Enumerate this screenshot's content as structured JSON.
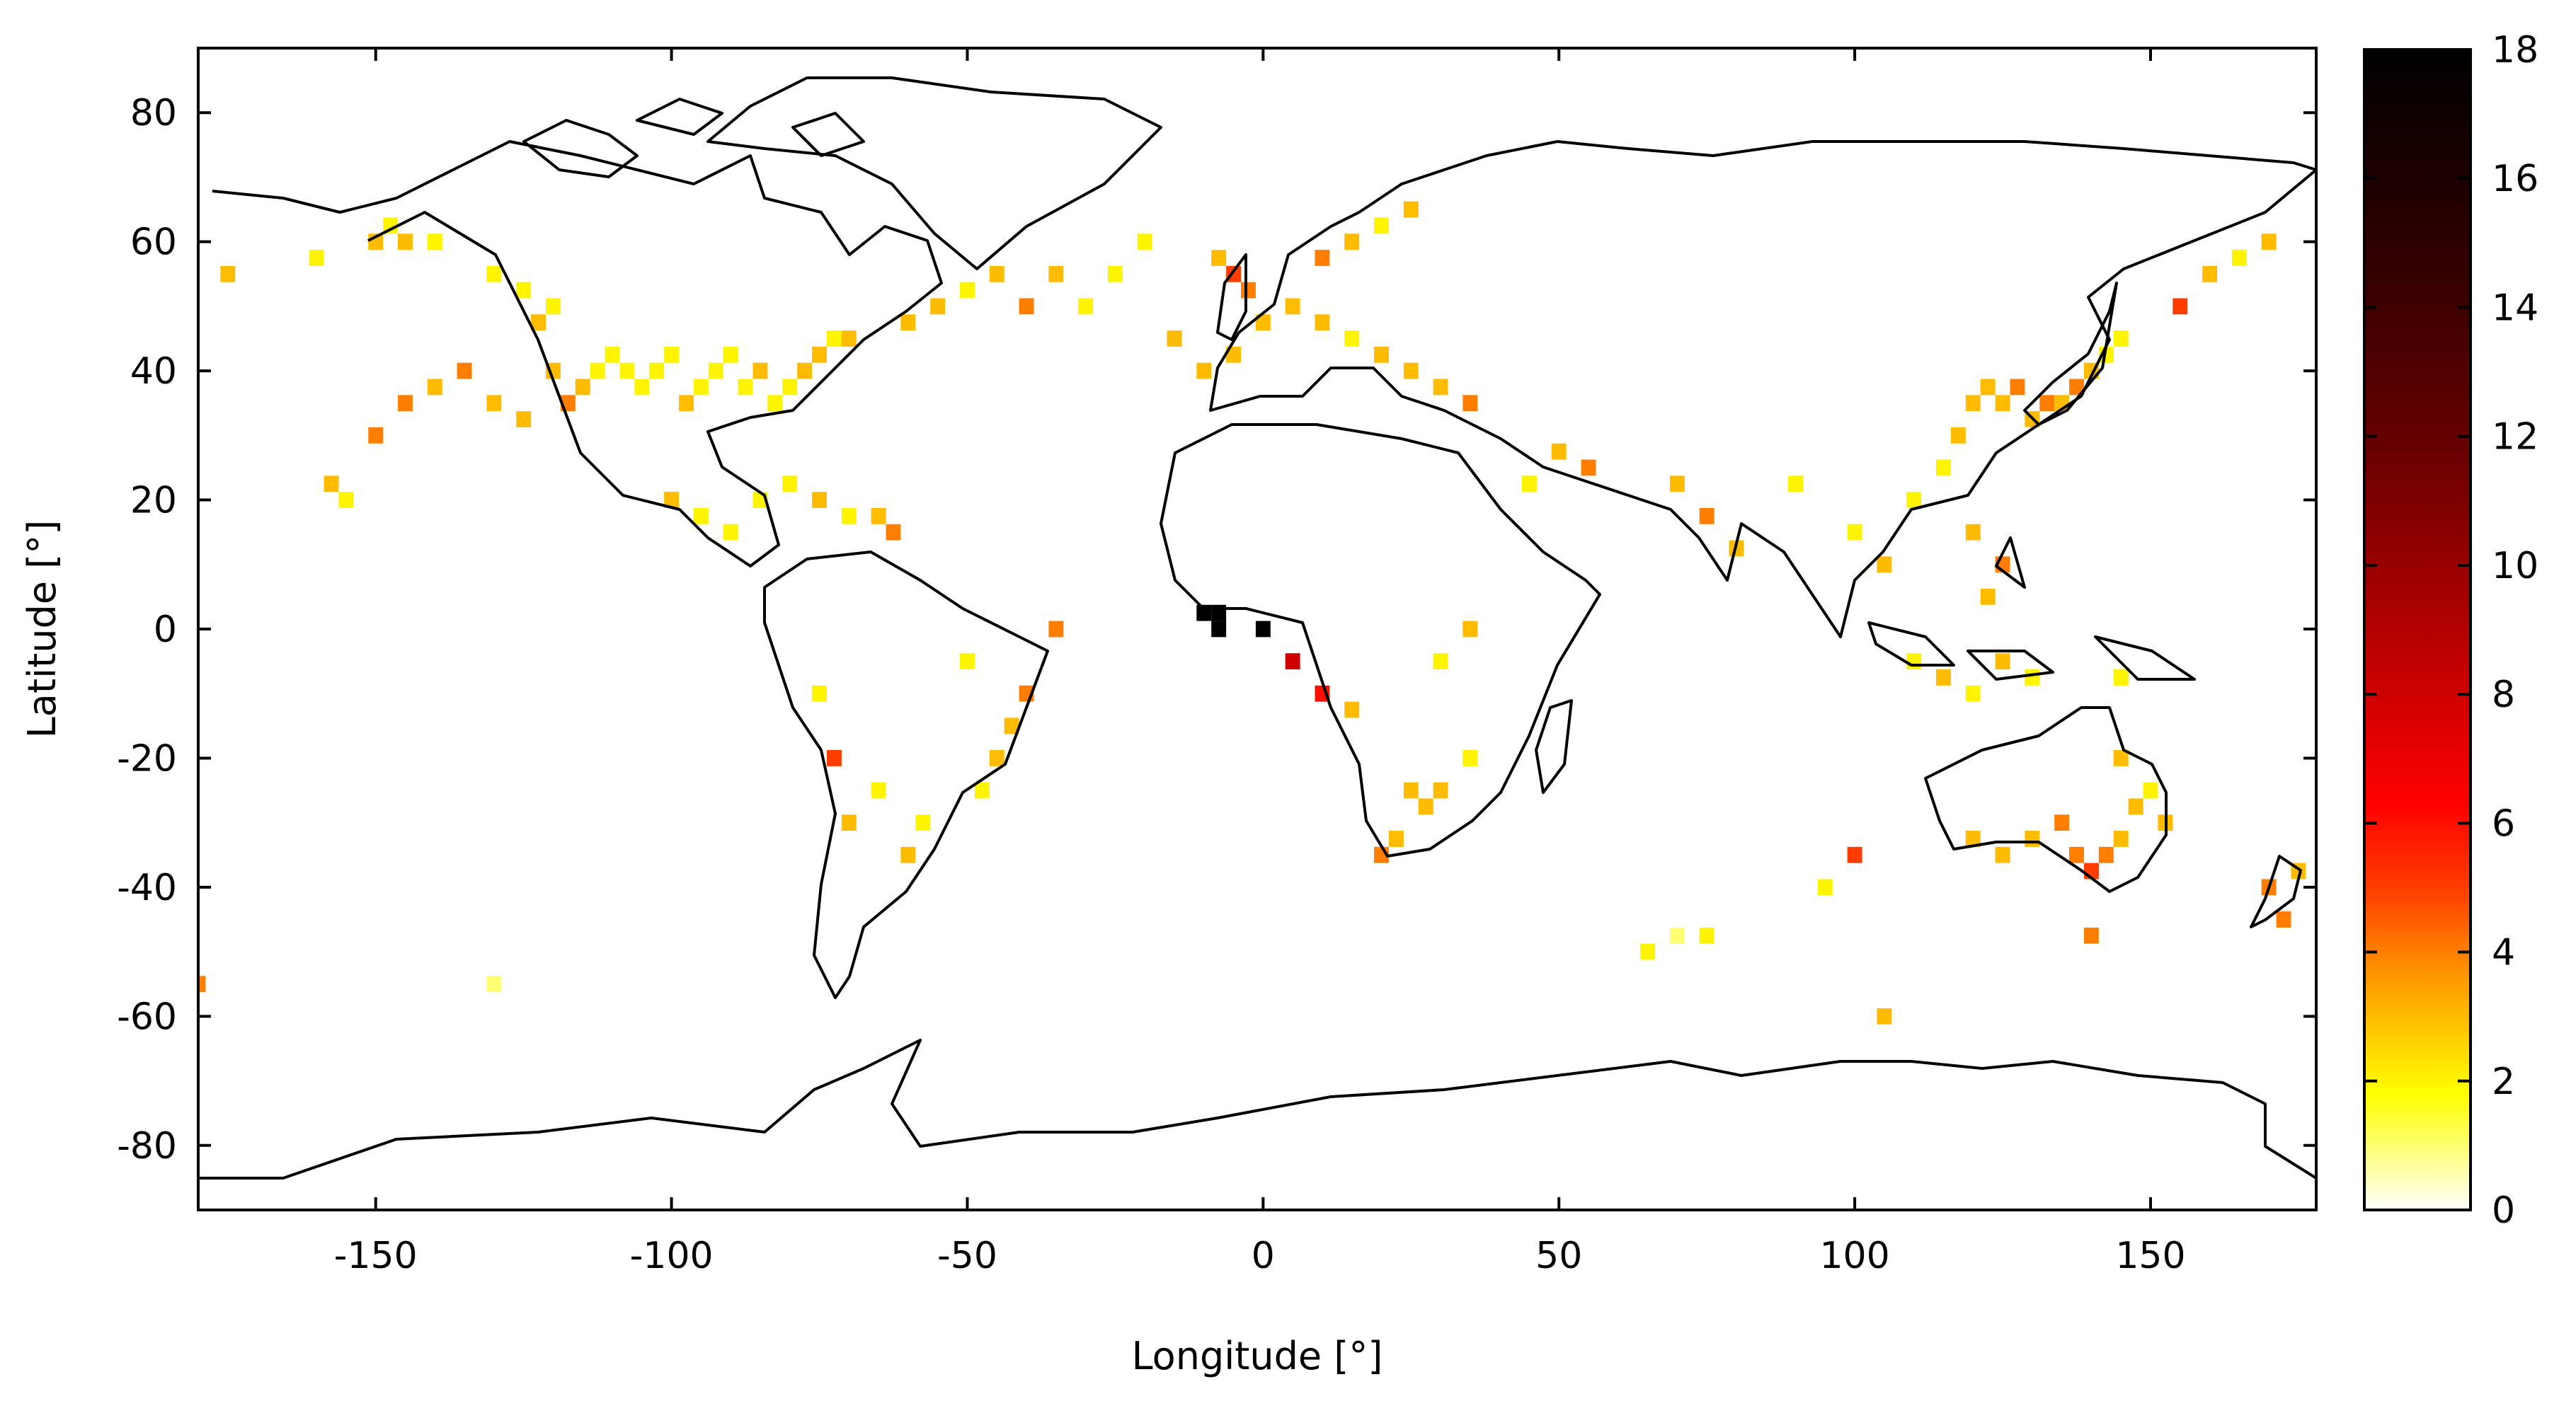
{
  "chart_data": {
    "type": "heatmap",
    "title": "",
    "xlabel": "Longitude [°]",
    "ylabel": "Latitude [°]",
    "xlim": [
      -180,
      178
    ],
    "ylim": [
      -90,
      90
    ],
    "x_ticks": [
      -150,
      -100,
      -50,
      0,
      50,
      100,
      150
    ],
    "y_ticks": [
      -80,
      -60,
      -40,
      -20,
      0,
      20,
      40,
      60,
      80
    ],
    "colorbar": {
      "range": [
        0,
        18
      ],
      "ticks": [
        0,
        2,
        4,
        6,
        8,
        10,
        12,
        14,
        16,
        18
      ],
      "colors": [
        "#ffffff",
        "#ffff80",
        "#ffff00",
        "#ffcc00",
        "#ff9900",
        "#ff4400",
        "#ff0000",
        "#b30000",
        "#6a0000",
        "#300000",
        "#000000"
      ]
    },
    "cell_size_deg": 2.5,
    "background_map": "world coastlines",
    "cells": [
      {
        "lon": -120,
        "lat": 40,
        "v": 3
      },
      {
        "lon": -117.5,
        "lat": 35,
        "v": 4
      },
      {
        "lon": -115,
        "lat": 37.5,
        "v": 3
      },
      {
        "lon": -112.5,
        "lat": 40,
        "v": 2
      },
      {
        "lon": -110,
        "lat": 42.5,
        "v": 2
      },
      {
        "lon": -107.5,
        "lat": 40,
        "v": 2
      },
      {
        "lon": -105,
        "lat": 37.5,
        "v": 2
      },
      {
        "lon": -102.5,
        "lat": 40,
        "v": 2
      },
      {
        "lon": -100,
        "lat": 42.5,
        "v": 2
      },
      {
        "lon": -97.5,
        "lat": 35,
        "v": 3
      },
      {
        "lon": -95,
        "lat": 37.5,
        "v": 2
      },
      {
        "lon": -92.5,
        "lat": 40,
        "v": 2
      },
      {
        "lon": -90,
        "lat": 42.5,
        "v": 2
      },
      {
        "lon": -87.5,
        "lat": 37.5,
        "v": 2
      },
      {
        "lon": -85,
        "lat": 40,
        "v": 3
      },
      {
        "lon": -82.5,
        "lat": 35,
        "v": 2
      },
      {
        "lon": -80,
        "lat": 37.5,
        "v": 2
      },
      {
        "lon": -77.5,
        "lat": 40,
        "v": 3
      },
      {
        "lon": -75,
        "lat": 42.5,
        "v": 3
      },
      {
        "lon": -72.5,
        "lat": 45,
        "v": 2
      },
      {
        "lon": -70,
        "lat": 45,
        "v": 3
      },
      {
        "lon": -122.5,
        "lat": 47.5,
        "v": 3
      },
      {
        "lon": -120,
        "lat": 50,
        "v": 2
      },
      {
        "lon": -125,
        "lat": 52.5,
        "v": 2
      },
      {
        "lon": -130,
        "lat": 55,
        "v": 2
      },
      {
        "lon": -150,
        "lat": 60,
        "v": 3
      },
      {
        "lon": -147.5,
        "lat": 62.5,
        "v": 2
      },
      {
        "lon": -145,
        "lat": 60,
        "v": 3
      },
      {
        "lon": -140,
        "lat": 60,
        "v": 2
      },
      {
        "lon": -160,
        "lat": 57.5,
        "v": 2
      },
      {
        "lon": -175,
        "lat": 55,
        "v": 3
      },
      {
        "lon": -155,
        "lat": 20,
        "v": 2
      },
      {
        "lon": -157.5,
        "lat": 22.5,
        "v": 3
      },
      {
        "lon": -150,
        "lat": 30,
        "v": 4
      },
      {
        "lon": -145,
        "lat": 35,
        "v": 4
      },
      {
        "lon": -140,
        "lat": 37.5,
        "v": 3
      },
      {
        "lon": -135,
        "lat": 40,
        "v": 4
      },
      {
        "lon": -130,
        "lat": 35,
        "v": 3
      },
      {
        "lon": -125,
        "lat": 32.5,
        "v": 3
      },
      {
        "lon": -100,
        "lat": 20,
        "v": 3
      },
      {
        "lon": -95,
        "lat": 17.5,
        "v": 2
      },
      {
        "lon": -90,
        "lat": 15,
        "v": 2
      },
      {
        "lon": -85,
        "lat": 20,
        "v": 2
      },
      {
        "lon": -80,
        "lat": 22.5,
        "v": 2
      },
      {
        "lon": -75,
        "lat": 20,
        "v": 3
      },
      {
        "lon": -70,
        "lat": 17.5,
        "v": 2
      },
      {
        "lon": -65,
        "lat": 17.5,
        "v": 3
      },
      {
        "lon": -62.5,
        "lat": 15,
        "v": 4
      },
      {
        "lon": -60,
        "lat": 47.5,
        "v": 3
      },
      {
        "lon": -55,
        "lat": 50,
        "v": 3
      },
      {
        "lon": -50,
        "lat": 52.5,
        "v": 2
      },
      {
        "lon": -45,
        "lat": 55,
        "v": 3
      },
      {
        "lon": -40,
        "lat": 50,
        "v": 4
      },
      {
        "lon": -35,
        "lat": 55,
        "v": 3
      },
      {
        "lon": -30,
        "lat": 50,
        "v": 2
      },
      {
        "lon": -25,
        "lat": 55,
        "v": 2
      },
      {
        "lon": -20,
        "lat": 60,
        "v": 2
      },
      {
        "lon": -15,
        "lat": 45,
        "v": 3
      },
      {
        "lon": -10,
        "lat": 40,
        "v": 3
      },
      {
        "lon": -5,
        "lat": 42.5,
        "v": 3
      },
      {
        "lon": 0,
        "lat": 47.5,
        "v": 3
      },
      {
        "lon": 5,
        "lat": 50,
        "v": 3
      },
      {
        "lon": 10,
        "lat": 47.5,
        "v": 3
      },
      {
        "lon": 15,
        "lat": 45,
        "v": 2
      },
      {
        "lon": 20,
        "lat": 42.5,
        "v": 3
      },
      {
        "lon": 25,
        "lat": 40,
        "v": 3
      },
      {
        "lon": 30,
        "lat": 37.5,
        "v": 3
      },
      {
        "lon": 35,
        "lat": 35,
        "v": 4
      },
      {
        "lon": 10,
        "lat": 57.5,
        "v": 4
      },
      {
        "lon": 15,
        "lat": 60,
        "v": 3
      },
      {
        "lon": 20,
        "lat": 62.5,
        "v": 2
      },
      {
        "lon": 25,
        "lat": 65,
        "v": 3
      },
      {
        "lon": -5,
        "lat": 55,
        "v": 5
      },
      {
        "lon": -2.5,
        "lat": 52.5,
        "v": 4
      },
      {
        "lon": -7.5,
        "lat": 57.5,
        "v": 3
      },
      {
        "lon": 55,
        "lat": 25,
        "v": 4
      },
      {
        "lon": 50,
        "lat": 27.5,
        "v": 3
      },
      {
        "lon": 45,
        "lat": 22.5,
        "v": 2
      },
      {
        "lon": 70,
        "lat": 22.5,
        "v": 3
      },
      {
        "lon": 75,
        "lat": 17.5,
        "v": 4
      },
      {
        "lon": 80,
        "lat": 12.5,
        "v": 3
      },
      {
        "lon": 90,
        "lat": 22.5,
        "v": 2
      },
      {
        "lon": 100,
        "lat": 15,
        "v": 2
      },
      {
        "lon": 105,
        "lat": 10,
        "v": 3
      },
      {
        "lon": 110,
        "lat": 20,
        "v": 2
      },
      {
        "lon": 115,
        "lat": 25,
        "v": 2
      },
      {
        "lon": 117.5,
        "lat": 30,
        "v": 3
      },
      {
        "lon": 120,
        "lat": 35,
        "v": 3
      },
      {
        "lon": 122.5,
        "lat": 37.5,
        "v": 3
      },
      {
        "lon": 125,
        "lat": 35,
        "v": 3
      },
      {
        "lon": 127.5,
        "lat": 37.5,
        "v": 4
      },
      {
        "lon": 130,
        "lat": 32.5,
        "v": 3
      },
      {
        "lon": 132.5,
        "lat": 35,
        "v": 4
      },
      {
        "lon": 135,
        "lat": 35,
        "v": 3
      },
      {
        "lon": 137.5,
        "lat": 37.5,
        "v": 4
      },
      {
        "lon": 140,
        "lat": 40,
        "v": 3
      },
      {
        "lon": 142.5,
        "lat": 42.5,
        "v": 2
      },
      {
        "lon": 145,
        "lat": 45,
        "v": 2
      },
      {
        "lon": 155,
        "lat": 50,
        "v": 5
      },
      {
        "lon": 160,
        "lat": 55,
        "v": 3
      },
      {
        "lon": 165,
        "lat": 57.5,
        "v": 2
      },
      {
        "lon": 170,
        "lat": 60,
        "v": 3
      },
      {
        "lon": 120,
        "lat": 15,
        "v": 3
      },
      {
        "lon": 125,
        "lat": 10,
        "v": 4
      },
      {
        "lon": 122.5,
        "lat": 5,
        "v": 3
      },
      {
        "lon": 110,
        "lat": -5,
        "v": 2
      },
      {
        "lon": 115,
        "lat": -7.5,
        "v": 3
      },
      {
        "lon": 120,
        "lat": -10,
        "v": 2
      },
      {
        "lon": 125,
        "lat": -5,
        "v": 3
      },
      {
        "lon": 130,
        "lat": -7.5,
        "v": 2
      },
      {
        "lon": 145,
        "lat": -7.5,
        "v": 2
      },
      {
        "lon": 120,
        "lat": -32.5,
        "v": 3
      },
      {
        "lon": 125,
        "lat": -35,
        "v": 3
      },
      {
        "lon": 130,
        "lat": -32.5,
        "v": 3
      },
      {
        "lon": 135,
        "lat": -30,
        "v": 4
      },
      {
        "lon": 137.5,
        "lat": -35,
        "v": 4
      },
      {
        "lon": 140,
        "lat": -37.5,
        "v": 5
      },
      {
        "lon": 142.5,
        "lat": -35,
        "v": 4
      },
      {
        "lon": 145,
        "lat": -32.5,
        "v": 3
      },
      {
        "lon": 147.5,
        "lat": -27.5,
        "v": 3
      },
      {
        "lon": 150,
        "lat": -25,
        "v": 2
      },
      {
        "lon": 152.5,
        "lat": -30,
        "v": 3
      },
      {
        "lon": 145,
        "lat": -20,
        "v": 3
      },
      {
        "lon": 170,
        "lat": -40,
        "v": 4
      },
      {
        "lon": 172.5,
        "lat": -45,
        "v": 4
      },
      {
        "lon": 175,
        "lat": -37.5,
        "v": 3
      },
      {
        "lon": 25,
        "lat": -25,
        "v": 3
      },
      {
        "lon": 27.5,
        "lat": -27.5,
        "v": 3
      },
      {
        "lon": 30,
        "lat": -25,
        "v": 3
      },
      {
        "lon": 22.5,
        "lat": -32.5,
        "v": 3
      },
      {
        "lon": 20,
        "lat": -35,
        "v": 4
      },
      {
        "lon": 35,
        "lat": -20,
        "v": 2
      },
      {
        "lon": -10,
        "lat": 2.5,
        "v": 18
      },
      {
        "lon": -7.5,
        "lat": 2.5,
        "v": 18
      },
      {
        "lon": -7.5,
        "lat": 0,
        "v": 18
      },
      {
        "lon": 0,
        "lat": 0,
        "v": 18
      },
      {
        "lon": 5,
        "lat": -5,
        "v": 8
      },
      {
        "lon": 10,
        "lat": -10,
        "v": 6
      },
      {
        "lon": 15,
        "lat": -12.5,
        "v": 3
      },
      {
        "lon": 30,
        "lat": -5,
        "v": 2
      },
      {
        "lon": 35,
        "lat": 0,
        "v": 3
      },
      {
        "lon": -40,
        "lat": -10,
        "v": 4
      },
      {
        "lon": -42.5,
        "lat": -15,
        "v": 3
      },
      {
        "lon": -45,
        "lat": -20,
        "v": 3
      },
      {
        "lon": -47.5,
        "lat": -25,
        "v": 2
      },
      {
        "lon": -50,
        "lat": -5,
        "v": 2
      },
      {
        "lon": -35,
        "lat": 0,
        "v": 4
      },
      {
        "lon": -75,
        "lat": -10,
        "v": 2
      },
      {
        "lon": -72.5,
        "lat": -20,
        "v": 5
      },
      {
        "lon": -70,
        "lat": -30,
        "v": 3
      },
      {
        "lon": -65,
        "lat": -25,
        "v": 2
      },
      {
        "lon": -60,
        "lat": -35,
        "v": 3
      },
      {
        "lon": -57.5,
        "lat": -30,
        "v": 2
      },
      {
        "lon": -180,
        "lat": -55,
        "v": 4
      },
      {
        "lon": -130,
        "lat": -55,
        "v": 1
      },
      {
        "lon": 65,
        "lat": -50,
        "v": 2
      },
      {
        "lon": 70,
        "lat": -47.5,
        "v": 1
      },
      {
        "lon": 75,
        "lat": -47.5,
        "v": 2
      },
      {
        "lon": 95,
        "lat": -40,
        "v": 2
      },
      {
        "lon": 100,
        "lat": -35,
        "v": 5
      },
      {
        "lon": 140,
        "lat": -47.5,
        "v": 4
      },
      {
        "lon": 105,
        "lat": -60,
        "v": 3
      }
    ]
  }
}
